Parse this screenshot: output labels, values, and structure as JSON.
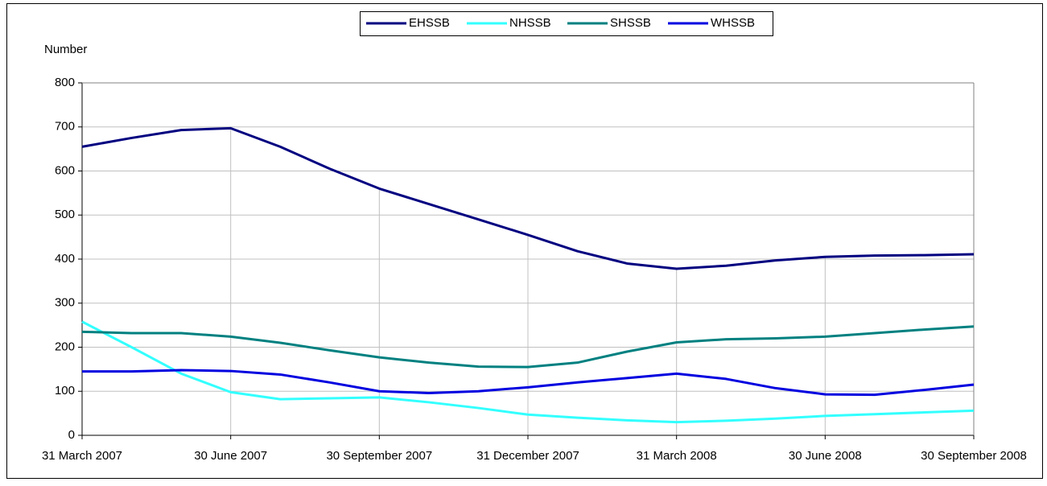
{
  "chart_data": {
    "type": "line",
    "ylabel": "Number",
    "categories": [
      "31 March 2007",
      null,
      null,
      "30 June 2007",
      null,
      null,
      "30 September 2007",
      null,
      null,
      "31 December 2007",
      null,
      null,
      "31 March 2008",
      null,
      null,
      "30 June 2008",
      null,
      null,
      "30 September 2008"
    ],
    "series": [
      {
        "name": "EHSSB",
        "color": "#000080",
        "values": [
          655,
          675,
          693,
          697,
          655,
          605,
          560,
          525,
          490,
          455,
          418,
          390,
          378,
          385,
          397,
          405,
          408,
          409,
          411
        ]
      },
      {
        "name": "NHSSB",
        "color": "#33ffff",
        "values": [
          258,
          200,
          140,
          98,
          82,
          84,
          86,
          75,
          62,
          47,
          40,
          34,
          30,
          33,
          38,
          44,
          48,
          52,
          56
        ]
      },
      {
        "name": "SHSSB",
        "color": "#008080",
        "values": [
          235,
          232,
          232,
          224,
          210,
          193,
          177,
          165,
          156,
          155,
          165,
          190,
          211,
          218,
          220,
          224,
          232,
          240,
          247
        ]
      },
      {
        "name": "WHSSB",
        "color": "#0000e0",
        "values": [
          145,
          145,
          148,
          146,
          138,
          120,
          100,
          96,
          100,
          109,
          120,
          130,
          140,
          128,
          107,
          93,
          92,
          103,
          115
        ]
      }
    ],
    "ylim": [
      0,
      800
    ],
    "yticks": [
      0,
      100,
      200,
      300,
      400,
      500,
      600,
      700,
      800
    ],
    "grid": true,
    "legend": "top"
  }
}
